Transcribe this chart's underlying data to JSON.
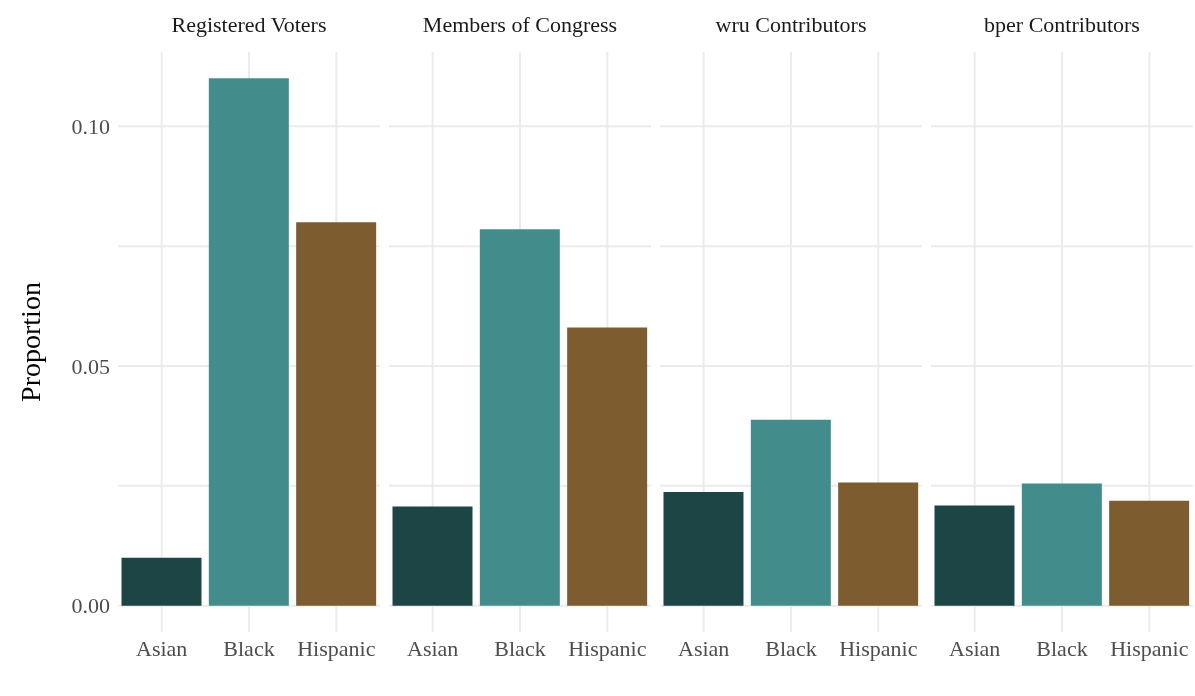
{
  "chart_data": [
    {
      "type": "bar",
      "title": "Registered Voters",
      "ylabel": "Proportion",
      "categories": [
        "Asian",
        "Black",
        "Hispanic"
      ],
      "values": [
        0.01,
        0.11,
        0.08
      ],
      "colors": [
        "#1e4545",
        "#438c8c",
        "#7d5c30"
      ],
      "ylim": [
        -0.0055,
        0.1155
      ],
      "yticks": [
        {
          "value": 0,
          "label": "0.00"
        },
        {
          "value": 0.025,
          "label": null
        },
        {
          "value": 0.05,
          "label": "0.05"
        },
        {
          "value": 0.075,
          "label": null
        },
        {
          "value": 0.1,
          "label": "0.10"
        }
      ],
      "grid": true
    },
    {
      "type": "bar",
      "title": "Members of Congress",
      "categories": [
        "Asian",
        "Black",
        "Hispanic"
      ],
      "values": [
        0.0207,
        0.0785,
        0.058
      ],
      "colors": [
        "#1e4545",
        "#438c8c",
        "#7d5c30"
      ],
      "ylim": [
        -0.0055,
        0.1155
      ],
      "yticks": [
        {
          "value": 0,
          "label": null
        },
        {
          "value": 0.025,
          "label": null
        },
        {
          "value": 0.05,
          "label": null
        },
        {
          "value": 0.075,
          "label": null
        },
        {
          "value": 0.1,
          "label": null
        }
      ],
      "grid": true,
      "tick_labels": "x"
    },
    {
      "type": "bar",
      "title": "wru Contributors",
      "categories": [
        "Asian",
        "Black",
        "Hispanic"
      ],
      "values": [
        0.0237,
        0.0388,
        0.0257
      ],
      "colors": [
        "#1e4545",
        "#438c8c",
        "#7d5c30"
      ],
      "ylim": [
        -0.0055,
        0.1155
      ],
      "yticks": [
        {
          "value": 0,
          "label": null
        },
        {
          "value": 0.025,
          "label": null
        },
        {
          "value": 0.05,
          "label": null
        },
        {
          "value": 0.075,
          "label": null
        },
        {
          "value": 0.1,
          "label": null
        }
      ],
      "grid": true,
      "tick_labels": "x"
    },
    {
      "type": "bar",
      "title": "bper Contributors",
      "categories": [
        "Asian",
        "Black",
        "Hispanic"
      ],
      "values": [
        0.0209,
        0.0255,
        0.0219
      ],
      "colors": [
        "#1e4545",
        "#438c8c",
        "#7d5c30"
      ],
      "ylim": [
        -0.0055,
        0.1155
      ],
      "yticks": [
        {
          "value": 0,
          "label": null
        },
        {
          "value": 0.025,
          "label": null
        },
        {
          "value": 0.05,
          "label": null
        },
        {
          "value": 0.075,
          "label": null
        },
        {
          "value": 0.1,
          "label": null
        }
      ],
      "grid": true,
      "tick_labels": "x"
    }
  ]
}
